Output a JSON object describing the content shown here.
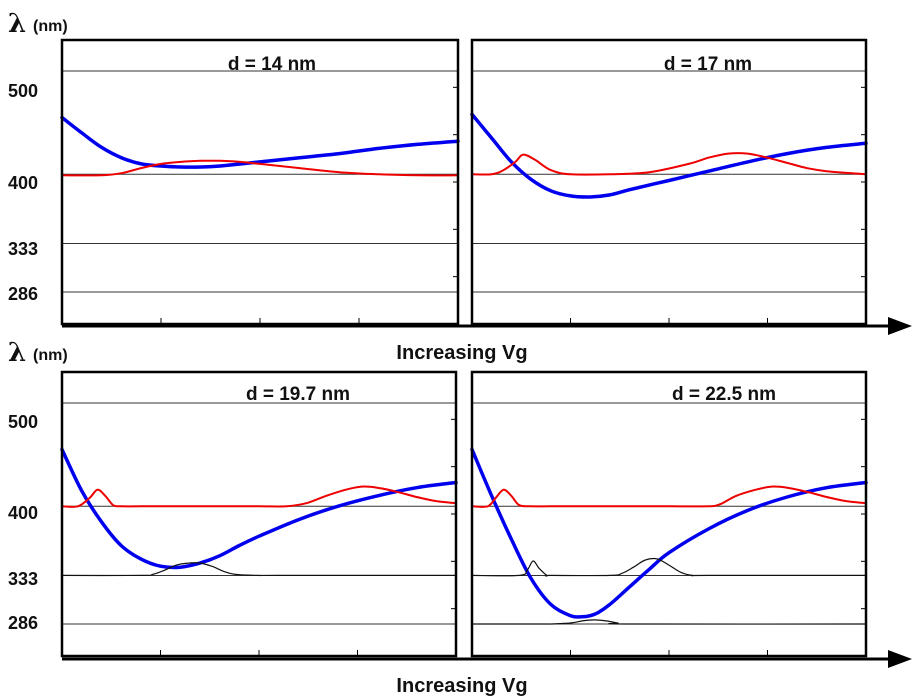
{
  "chart_data": [
    {
      "type": "line",
      "title": "d = 14 nm",
      "ylabel_symbol": "λ",
      "ylabel_unit": "(nm)",
      "xlabel": "Increasing Vg",
      "yticks": [
        500,
        400,
        333,
        286
      ],
      "ylim": [
        255,
        530
      ],
      "xlim": [
        0,
        1
      ],
      "series": [
        {
          "color": "#0000ee",
          "x": [
            0,
            0.05,
            0.1,
            0.15,
            0.2,
            0.25,
            0.3,
            0.35,
            0.4,
            0.5,
            0.6,
            0.7,
            0.8,
            0.9,
            1.0
          ],
          "y": [
            455,
            440,
            426,
            416,
            410,
            408,
            407,
            407,
            408,
            412,
            416,
            420,
            425,
            429,
            432
          ]
        },
        {
          "color": "#ee0000",
          "x": [
            0,
            0.1,
            0.15,
            0.2,
            0.25,
            0.3,
            0.35,
            0.4,
            0.45,
            0.5,
            0.55,
            0.6,
            0.7,
            0.8,
            0.9,
            1.0
          ],
          "y": [
            399,
            399,
            401,
            406,
            410,
            412,
            413,
            413,
            412,
            410,
            408,
            406,
            402,
            400,
            399,
            399
          ]
        }
      ]
    },
    {
      "type": "line",
      "title": "d = 17 nm",
      "yticks": [
        500,
        400,
        333,
        286
      ],
      "ylim": [
        255,
        530
      ],
      "xlim": [
        0,
        1
      ],
      "series": [
        {
          "color": "#0000ee",
          "x": [
            0,
            0.05,
            0.1,
            0.15,
            0.2,
            0.25,
            0.3,
            0.35,
            0.4,
            0.5,
            0.6,
            0.7,
            0.8,
            0.9,
            1.0
          ],
          "y": [
            458,
            435,
            412,
            395,
            384,
            379,
            378,
            380,
            385,
            394,
            403,
            412,
            420,
            426,
            430
          ]
        },
        {
          "color": "#ee0000",
          "x": [
            0,
            0.05,
            0.08,
            0.11,
            0.13,
            0.16,
            0.2,
            0.25,
            0.35,
            0.45,
            0.55,
            0.6,
            0.65,
            0.7,
            0.75,
            0.8,
            0.85,
            0.9,
            1.0
          ],
          "y": [
            400,
            400,
            404,
            412,
            419,
            414,
            404,
            400,
            400,
            402,
            410,
            416,
            420,
            420,
            416,
            411,
            406,
            403,
            400
          ]
        }
      ]
    },
    {
      "type": "line",
      "title": "d = 19.7 nm",
      "xlabel": "Increasing Vg",
      "yticks": [
        500,
        400,
        333,
        286
      ],
      "ylim": [
        255,
        530
      ],
      "xlim": [
        0,
        1
      ],
      "series": [
        {
          "color": "#0000ee",
          "x": [
            0,
            0.05,
            0.1,
            0.15,
            0.2,
            0.25,
            0.3,
            0.35,
            0.4,
            0.45,
            0.5,
            0.6,
            0.7,
            0.8,
            0.9,
            1.0
          ],
          "y": [
            455,
            415,
            385,
            362,
            349,
            342,
            341,
            345,
            352,
            362,
            371,
            387,
            400,
            410,
            418,
            423
          ]
        },
        {
          "color": "#ee0000",
          "x": [
            0,
            0.04,
            0.07,
            0.09,
            0.11,
            0.13,
            0.15,
            0.2,
            0.3,
            0.4,
            0.5,
            0.57,
            0.62,
            0.67,
            0.72,
            0.76,
            0.8,
            0.85,
            0.9,
            0.95,
            1.0
          ],
          "y": [
            400,
            400,
            408,
            416,
            410,
            401,
            400,
            400,
            400,
            400,
            400,
            400,
            403,
            410,
            416,
            419,
            418,
            414,
            409,
            405,
            403
          ]
        },
        {
          "color": "#111111",
          "x": [
            0,
            0.2,
            0.23,
            0.26,
            0.29,
            0.32,
            0.35,
            0.38,
            0.41,
            0.44,
            0.5,
            0.55,
            1.0
          ],
          "y": [
            333,
            333,
            334,
            338,
            343,
            345,
            345,
            342,
            337,
            334,
            333,
            333,
            333
          ]
        }
      ]
    },
    {
      "type": "line",
      "title": "d = 22.5 nm",
      "yticks": [
        500,
        400,
        333,
        286
      ],
      "ylim": [
        255,
        530
      ],
      "xlim": [
        0,
        1
      ],
      "series": [
        {
          "color": "#0000ee",
          "x": [
            0,
            0.05,
            0.1,
            0.15,
            0.2,
            0.25,
            0.28,
            0.3,
            0.32,
            0.35,
            0.4,
            0.45,
            0.5,
            0.6,
            0.7,
            0.8,
            0.9,
            1.0
          ],
          "y": [
            455,
            410,
            368,
            330,
            305,
            294,
            293,
            294,
            297,
            305,
            322,
            339,
            355,
            378,
            396,
            409,
            418,
            423
          ]
        },
        {
          "color": "#ee0000",
          "x": [
            0,
            0.04,
            0.06,
            0.08,
            0.1,
            0.12,
            0.15,
            0.2,
            0.3,
            0.4,
            0.5,
            0.6,
            0.63,
            0.67,
            0.72,
            0.76,
            0.8,
            0.85,
            0.9,
            0.95,
            1.0
          ],
          "y": [
            400,
            400,
            408,
            416,
            410,
            401,
            400,
            400,
            400,
            400,
            400,
            400,
            402,
            410,
            416,
            419,
            418,
            414,
            409,
            405,
            403
          ]
        },
        {
          "color": "#111111",
          "x": [
            0,
            0.12,
            0.14,
            0.155,
            0.17,
            0.19,
            0.2,
            0.35,
            0.38,
            0.41,
            0.44,
            0.47,
            0.5,
            0.53,
            0.56,
            0.6,
            1.0
          ],
          "y": [
            333,
            333,
            338,
            347,
            340,
            333,
            333,
            333,
            335,
            341,
            348,
            349,
            343,
            336,
            333,
            333,
            333
          ]
        },
        {
          "color": "#111111",
          "x": [
            0,
            0.18,
            0.2,
            0.25,
            0.28,
            0.31,
            0.34,
            0.37,
            0.4,
            1.0
          ],
          "y": [
            286,
            286,
            286,
            287,
            289,
            290,
            289,
            287,
            286,
            286
          ]
        }
      ]
    }
  ]
}
